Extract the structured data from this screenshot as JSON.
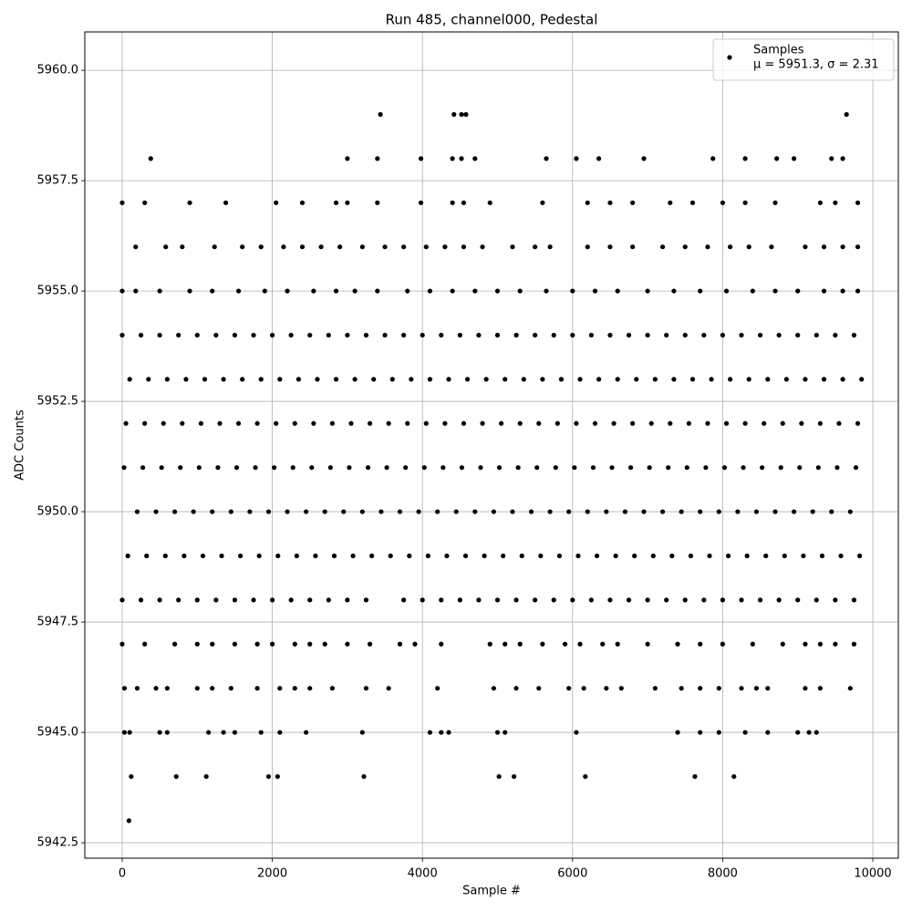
{
  "chart_data": {
    "type": "scatter",
    "title": "Run 485, channel000, Pedestal",
    "x_label": "Sample #",
    "y_label": "ADC Counts",
    "xlim": [
      -498,
      10340
    ],
    "ylim": [
      5942.15,
      5960.87
    ],
    "xticks": [
      0,
      2000,
      4000,
      6000,
      8000,
      10000
    ],
    "yticks": [
      {
        "value": 5942.5,
        "label": "5942.5"
      },
      {
        "value": 5945,
        "label": "5945.0"
      },
      {
        "value": 5947.5,
        "label": "5947.5"
      },
      {
        "value": 5950,
        "label": "5950.0"
      },
      {
        "value": 5952.5,
        "label": "5952.5"
      },
      {
        "value": 5955,
        "label": "5955.0"
      },
      {
        "value": 5957.5,
        "label": "5957.5"
      },
      {
        "value": 5960,
        "label": "5960.0"
      }
    ],
    "grid": true,
    "legend": "upper right",
    "legend_note": "μ = 5951.3, σ = 2.31",
    "series": [
      {
        "name": "Samples",
        "color": "#000000",
        "x": [
          0,
          250,
          500,
          750,
          1000,
          1250,
          1500,
          1750,
          2000,
          2250,
          2500,
          2750,
          3000,
          3250,
          3500,
          3750,
          4000,
          4250,
          4500,
          4750,
          5000,
          5250,
          5500,
          5750,
          6000,
          6250,
          6500,
          6750,
          7000,
          7250,
          7500,
          7750,
          8000,
          8250,
          8500,
          8750,
          9000,
          9250,
          9500,
          9750,
          100,
          350,
          600,
          850,
          1100,
          1350,
          1600,
          1850,
          2100,
          2350,
          2600,
          2850,
          3100,
          3350,
          3600,
          3850,
          4100,
          4350,
          4600,
          4850,
          5100,
          5350,
          5600,
          5850,
          6100,
          6350,
          6600,
          6850,
          7100,
          7350,
          7600,
          7850,
          8100,
          8350,
          8600,
          8850,
          9100,
          9350,
          9600,
          9850,
          50,
          300,
          550,
          800,
          1050,
          1300,
          1550,
          1800,
          2050,
          2300,
          2550,
          2800,
          3050,
          3300,
          3550,
          3800,
          4050,
          4300,
          4550,
          4800,
          5050,
          5300,
          5550,
          5800,
          6050,
          6300,
          6550,
          6800,
          7050,
          7300,
          7550,
          7800,
          8050,
          8300,
          8550,
          8800,
          9050,
          9300,
          9550,
          9800,
          25,
          275,
          525,
          775,
          1025,
          1275,
          1525,
          1775,
          2025,
          2275,
          2525,
          2775,
          3025,
          3275,
          3525,
          3775,
          4025,
          4275,
          4525,
          4775,
          5025,
          5275,
          5525,
          5775,
          6025,
          6275,
          6525,
          6775,
          7025,
          7275,
          7525,
          7775,
          8025,
          8275,
          8525,
          8775,
          9025,
          9275,
          9525,
          9775,
          200,
          450,
          700,
          950,
          1200,
          1450,
          1700,
          1950,
          2200,
          2450,
          2700,
          2950,
          3200,
          3450,
          3700,
          3950,
          4200,
          4450,
          4700,
          4950,
          5200,
          5450,
          5700,
          5950,
          6200,
          6450,
          6700,
          6950,
          7200,
          7450,
          7700,
          7950,
          8200,
          8450,
          8700,
          8950,
          9200,
          9450,
          9700,
          75,
          325,
          575,
          825,
          1075,
          1325,
          1575,
          1825,
          2075,
          2325,
          2575,
          2825,
          3075,
          3325,
          3575,
          3825,
          4075,
          4325,
          4575,
          4825,
          5075,
          5325,
          5575,
          5825,
          6075,
          6325,
          6575,
          6825,
          7075,
          7325,
          7575,
          7825,
          8075,
          8325,
          8575,
          8825,
          9075,
          9325,
          9575,
          9825,
          0,
          250,
          500,
          750,
          1000,
          1250,
          1500,
          1750,
          2000,
          2250,
          2500,
          2750,
          3000,
          3250,
          3750,
          4000,
          4250,
          4500,
          4750,
          5000,
          5250,
          5500,
          5750,
          6000,
          6250,
          6500,
          6750,
          7000,
          7250,
          7500,
          7750,
          8000,
          8250,
          8500,
          8750,
          9000,
          9250,
          9500,
          9750,
          0,
          180,
          500,
          900,
          1200,
          1550,
          1900,
          2200,
          2550,
          2850,
          3100,
          3400,
          3800,
          4100,
          4400,
          4700,
          5000,
          5300,
          5650,
          6000,
          6300,
          6600,
          7000,
          7350,
          7700,
          8050,
          8400,
          8700,
          9000,
          9350,
          9600,
          9800,
          180,
          580,
          800,
          1230,
          1600,
          1850,
          2150,
          2400,
          2650,
          2900,
          3200,
          3500,
          3750,
          4050,
          4300,
          4550,
          4800,
          5200,
          5500,
          5700,
          6200,
          6500,
          6800,
          7200,
          7500,
          7800,
          8100,
          8350,
          8650,
          9100,
          9350,
          9600,
          9800,
          0,
          300,
          900,
          1380,
          2050,
          2400,
          2850,
          3000,
          3400,
          3980,
          4400,
          4550,
          4900,
          5600,
          6200,
          6500,
          6800,
          7300,
          7600,
          8000,
          8300,
          8700,
          9300,
          9500,
          9800,
          380,
          3000,
          3400,
          3980,
          4400,
          4520,
          4700,
          5650,
          6050,
          6350,
          6950,
          7870,
          8300,
          8720,
          8950,
          9450,
          9600,
          3440,
          4420,
          4520,
          4580,
          9650,
          0,
          300,
          700,
          1000,
          1200,
          1500,
          1800,
          2000,
          2300,
          2500,
          2700,
          3000,
          3300,
          3700,
          3900,
          4250,
          4900,
          5100,
          5300,
          5600,
          5900,
          6100,
          6400,
          6600,
          7000,
          7400,
          7700,
          8000,
          8400,
          8800,
          9100,
          9300,
          9500,
          9750,
          30,
          200,
          450,
          600,
          1000,
          1200,
          1450,
          1800,
          2100,
          2300,
          2500,
          2800,
          3250,
          3550,
          4200,
          4950,
          5250,
          5550,
          5950,
          6150,
          6450,
          6650,
          7100,
          7450,
          7700,
          7950,
          8250,
          8450,
          8600,
          9100,
          9300,
          9700,
          30,
          100,
          500,
          600,
          1150,
          1350,
          1500,
          1850,
          2100,
          2450,
          3200,
          4100,
          4250,
          4350,
          5000,
          5100,
          6050,
          7400,
          7700,
          7950,
          8300,
          8600,
          9000,
          9150,
          9250,
          120,
          720,
          1120,
          1950,
          2070,
          3220,
          5020,
          5220,
          6170,
          7630,
          8150,
          90
        ],
        "values": [
          5954,
          5954,
          5954,
          5954,
          5954,
          5954,
          5954,
          5954,
          5954,
          5954,
          5954,
          5954,
          5954,
          5954,
          5954,
          5954,
          5954,
          5954,
          5954,
          5954,
          5954,
          5954,
          5954,
          5954,
          5954,
          5954,
          5954,
          5954,
          5954,
          5954,
          5954,
          5954,
          5954,
          5954,
          5954,
          5954,
          5954,
          5954,
          5954,
          5954,
          5953,
          5953,
          5953,
          5953,
          5953,
          5953,
          5953,
          5953,
          5953,
          5953,
          5953,
          5953,
          5953,
          5953,
          5953,
          5953,
          5953,
          5953,
          5953,
          5953,
          5953,
          5953,
          5953,
          5953,
          5953,
          5953,
          5953,
          5953,
          5953,
          5953,
          5953,
          5953,
          5953,
          5953,
          5953,
          5953,
          5953,
          5953,
          5953,
          5953,
          5952,
          5952,
          5952,
          5952,
          5952,
          5952,
          5952,
          5952,
          5952,
          5952,
          5952,
          5952,
          5952,
          5952,
          5952,
          5952,
          5952,
          5952,
          5952,
          5952,
          5952,
          5952,
          5952,
          5952,
          5952,
          5952,
          5952,
          5952,
          5952,
          5952,
          5952,
          5952,
          5952,
          5952,
          5952,
          5952,
          5952,
          5952,
          5952,
          5952,
          5951,
          5951,
          5951,
          5951,
          5951,
          5951,
          5951,
          5951,
          5951,
          5951,
          5951,
          5951,
          5951,
          5951,
          5951,
          5951,
          5951,
          5951,
          5951,
          5951,
          5951,
          5951,
          5951,
          5951,
          5951,
          5951,
          5951,
          5951,
          5951,
          5951,
          5951,
          5951,
          5951,
          5951,
          5951,
          5951,
          5951,
          5951,
          5951,
          5951,
          5950,
          5950,
          5950,
          5950,
          5950,
          5950,
          5950,
          5950,
          5950,
          5950,
          5950,
          5950,
          5950,
          5950,
          5950,
          5950,
          5950,
          5950,
          5950,
          5950,
          5950,
          5950,
          5950,
          5950,
          5950,
          5950,
          5950,
          5950,
          5950,
          5950,
          5950,
          5950,
          5950,
          5950,
          5950,
          5950,
          5950,
          5950,
          5950,
          5949,
          5949,
          5949,
          5949,
          5949,
          5949,
          5949,
          5949,
          5949,
          5949,
          5949,
          5949,
          5949,
          5949,
          5949,
          5949,
          5949,
          5949,
          5949,
          5949,
          5949,
          5949,
          5949,
          5949,
          5949,
          5949,
          5949,
          5949,
          5949,
          5949,
          5949,
          5949,
          5949,
          5949,
          5949,
          5949,
          5949,
          5949,
          5949,
          5949,
          5948,
          5948,
          5948,
          5948,
          5948,
          5948,
          5948,
          5948,
          5948,
          5948,
          5948,
          5948,
          5948,
          5948,
          5948,
          5948,
          5948,
          5948,
          5948,
          5948,
          5948,
          5948,
          5948,
          5948,
          5948,
          5948,
          5948,
          5948,
          5948,
          5948,
          5948,
          5948,
          5948,
          5948,
          5948,
          5948,
          5948,
          5948,
          5948,
          5955,
          5955,
          5955,
          5955,
          5955,
          5955,
          5955,
          5955,
          5955,
          5955,
          5955,
          5955,
          5955,
          5955,
          5955,
          5955,
          5955,
          5955,
          5955,
          5955,
          5955,
          5955,
          5955,
          5955,
          5955,
          5955,
          5955,
          5955,
          5955,
          5955,
          5955,
          5955,
          5956,
          5956,
          5956,
          5956,
          5956,
          5956,
          5956,
          5956,
          5956,
          5956,
          5956,
          5956,
          5956,
          5956,
          5956,
          5956,
          5956,
          5956,
          5956,
          5956,
          5956,
          5956,
          5956,
          5956,
          5956,
          5956,
          5956,
          5956,
          5956,
          5956,
          5956,
          5956,
          5956,
          5957,
          5957,
          5957,
          5957,
          5957,
          5957,
          5957,
          5957,
          5957,
          5957,
          5957,
          5957,
          5957,
          5957,
          5957,
          5957,
          5957,
          5957,
          5957,
          5957,
          5957,
          5957,
          5957,
          5957,
          5957,
          5958,
          5958,
          5958,
          5958,
          5958,
          5958,
          5958,
          5958,
          5958,
          5958,
          5958,
          5958,
          5958,
          5958,
          5958,
          5958,
          5958,
          5959,
          5959,
          5959,
          5959,
          5959,
          5947,
          5947,
          5947,
          5947,
          5947,
          5947,
          5947,
          5947,
          5947,
          5947,
          5947,
          5947,
          5947,
          5947,
          5947,
          5947,
          5947,
          5947,
          5947,
          5947,
          5947,
          5947,
          5947,
          5947,
          5947,
          5947,
          5947,
          5947,
          5947,
          5947,
          5947,
          5947,
          5947,
          5947,
          5946,
          5946,
          5946,
          5946,
          5946,
          5946,
          5946,
          5946,
          5946,
          5946,
          5946,
          5946,
          5946,
          5946,
          5946,
          5946,
          5946,
          5946,
          5946,
          5946,
          5946,
          5946,
          5946,
          5946,
          5946,
          5946,
          5946,
          5946,
          5946,
          5946,
          5946,
          5946,
          5945,
          5945,
          5945,
          5945,
          5945,
          5945,
          5945,
          5945,
          5945,
          5945,
          5945,
          5945,
          5945,
          5945,
          5945,
          5945,
          5945,
          5945,
          5945,
          5945,
          5945,
          5945,
          5945,
          5945,
          5945,
          5944,
          5944,
          5944,
          5944,
          5944,
          5944,
          5944,
          5944,
          5944,
          5944,
          5944,
          5943
        ]
      }
    ]
  }
}
